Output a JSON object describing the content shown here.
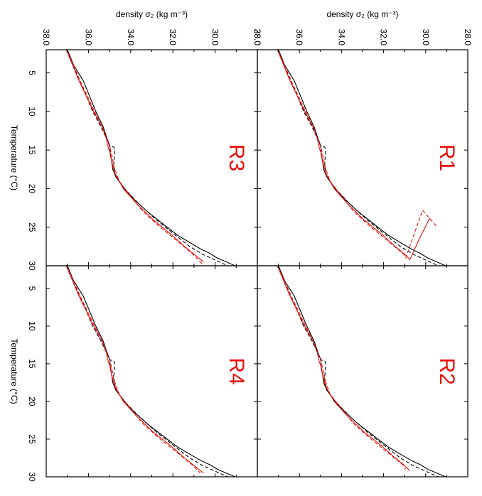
{
  "chart_data": {
    "type": "line",
    "layout": "2x2 panels, figure rotated 90 degrees clockwise (temperature axis runs down the page, density axis runs right-to-left)",
    "xlabel": "Temperature (°C)",
    "ylabel": "density σ₂ (kg m⁻³)",
    "xlim": [
      2,
      30
    ],
    "ylim": [
      28.0,
      38.0
    ],
    "x_ticks": [
      5,
      10,
      15,
      20,
      25,
      30
    ],
    "x_tick_labels": [
      "5",
      "10",
      "15",
      "20",
      "25",
      "30"
    ],
    "y_ticks": [
      28,
      30,
      32,
      34,
      36,
      38
    ],
    "y_tick_labels": [
      "28.0",
      "30.0",
      "32.0",
      "34.0",
      "36.0",
      "38.0"
    ],
    "grid": false,
    "legend": "none",
    "colors": {
      "reference": "#000000",
      "experiment": "#e8100b"
    },
    "panels": [
      {
        "title": "R1",
        "position": "top-right",
        "series": [
          {
            "color": "#000000",
            "style": "solid",
            "x": [
              1.5,
              2,
              4,
              6,
              8,
              10,
              12,
              13.5,
              14,
              14.5,
              15.5,
              16.5,
              17.5,
              18.5,
              20,
              21.5,
              23,
              24.5,
              26,
              27,
              27.8,
              28.4,
              29,
              30
            ],
            "y": [
              37.1,
              37.0,
              36.7,
              36.25,
              35.95,
              35.65,
              35.3,
              35.12,
              35.05,
              34.98,
              34.97,
              34.9,
              34.85,
              34.7,
              34.3,
              33.8,
              33.2,
              32.5,
              31.8,
              31.2,
              30.7,
              30.25,
              29.9,
              29.05
            ]
          },
          {
            "color": "#000000",
            "style": "dashed",
            "x": [
              2,
              4,
              6,
              8,
              10,
              12,
              13.5,
              14.5,
              14.6,
              15,
              16,
              17,
              18.5,
              20,
              22,
              24,
              26,
              27.5,
              28.5,
              29.5,
              30
            ],
            "y": [
              37.0,
              36.75,
              36.4,
              36.1,
              35.8,
              35.4,
              35.15,
              35.0,
              34.8,
              34.75,
              34.78,
              34.8,
              34.7,
              34.3,
              33.6,
              32.8,
              31.9,
              31.2,
              30.6,
              29.8,
              29.4
            ]
          },
          {
            "color": "#e8100b",
            "style": "solid",
            "x": [
              2,
              4,
              6,
              8,
              10,
              12,
              13.5,
              14.2,
              14.8,
              15.5,
              16.5,
              18,
              20,
              22,
              24,
              26,
              27.5,
              28.5,
              29.2,
              26.5,
              23.8
            ],
            "y": [
              37.05,
              36.75,
              36.45,
              36.1,
              35.75,
              35.35,
              35.15,
              35.1,
              35.05,
              34.95,
              34.9,
              34.75,
              34.35,
              33.7,
              32.95,
              32.05,
              31.45,
              31.0,
              30.75,
              30.3,
              29.8
            ]
          },
          {
            "color": "#e8100b",
            "style": "dashed",
            "x": [
              2,
              4,
              6,
              8,
              10,
              12,
              13.5,
              14.5,
              15.5,
              17,
              19,
              21,
              23,
              25,
              27,
              28.5,
              29,
              22.8,
              25
            ],
            "y": [
              37.05,
              36.7,
              36.4,
              36.05,
              35.7,
              35.35,
              35.15,
              35.0,
              34.9,
              34.8,
              34.55,
              34.0,
              33.4,
              32.6,
              31.7,
              31.05,
              30.95,
              30.15,
              29.45
            ]
          }
        ]
      },
      {
        "title": "R2",
        "position": "bottom-right",
        "series": [
          {
            "color": "#000000",
            "style": "solid",
            "x": [
              1.5,
              2,
              4,
              6,
              8,
              10,
              12,
              13.5,
              14,
              14.5,
              15.5,
              16.5,
              17.5,
              18.5,
              20,
              21.5,
              23,
              24.5,
              26,
              27,
              27.8,
              28.4,
              29,
              30
            ],
            "y": [
              37.1,
              37.0,
              36.7,
              36.25,
              35.95,
              35.65,
              35.3,
              35.12,
              35.05,
              34.98,
              34.97,
              34.9,
              34.85,
              34.7,
              34.3,
              33.8,
              33.2,
              32.5,
              31.8,
              31.2,
              30.7,
              30.25,
              29.9,
              29.05
            ]
          },
          {
            "color": "#000000",
            "style": "dashed",
            "x": [
              2,
              4,
              6,
              8,
              10,
              12,
              13.5,
              14.5,
              14.6,
              15,
              16,
              17,
              18.5,
              20,
              22,
              24,
              26,
              27.5,
              28.5,
              29.5,
              30
            ],
            "y": [
              37.0,
              36.75,
              36.4,
              36.1,
              35.8,
              35.4,
              35.15,
              35.0,
              34.8,
              34.75,
              34.78,
              34.8,
              34.7,
              34.3,
              33.6,
              32.8,
              31.9,
              31.2,
              30.6,
              29.8,
              29.4
            ]
          },
          {
            "color": "#e8100b",
            "style": "solid",
            "x": [
              2,
              4,
              6,
              8,
              10,
              12,
              13.5,
              14.2,
              14.8,
              15.5,
              16.5,
              18,
              20,
              22,
              24,
              26,
              27.5,
              28.5,
              29.2
            ],
            "y": [
              37.05,
              36.75,
              36.45,
              36.1,
              35.75,
              35.35,
              35.15,
              35.1,
              35.05,
              34.95,
              34.9,
              34.75,
              34.35,
              33.7,
              32.95,
              32.05,
              31.45,
              31.0,
              30.75
            ]
          },
          {
            "color": "#e8100b",
            "style": "dashed",
            "x": [
              2,
              4,
              6,
              8,
              10,
              12,
              13.5,
              14.5,
              15.5,
              17,
              19,
              21,
              23,
              25,
              27,
              28.5,
              29
            ],
            "y": [
              37.05,
              36.7,
              36.4,
              36.05,
              35.7,
              35.35,
              35.15,
              35.0,
              34.9,
              34.8,
              34.55,
              34.0,
              33.4,
              32.6,
              31.7,
              31.05,
              30.95
            ]
          }
        ]
      },
      {
        "title": "R3",
        "position": "top-left",
        "series": [
          {
            "color": "#000000",
            "style": "solid",
            "x": [
              1.5,
              2,
              4,
              6,
              8,
              10,
              12,
              13.5,
              14,
              14.5,
              15.5,
              16.5,
              17.5,
              18.5,
              20,
              21.5,
              23,
              24.5,
              26,
              27,
              27.8,
              28.4,
              29,
              30
            ],
            "y": [
              37.1,
              37.0,
              36.7,
              36.25,
              35.95,
              35.65,
              35.3,
              35.12,
              35.05,
              34.98,
              34.97,
              34.9,
              34.85,
              34.7,
              34.3,
              33.8,
              33.2,
              32.5,
              31.8,
              31.2,
              30.7,
              30.25,
              29.9,
              29.05
            ]
          },
          {
            "color": "#000000",
            "style": "dashed",
            "x": [
              2,
              4,
              6,
              8,
              10,
              12,
              13.5,
              14.5,
              14.6,
              15,
              16,
              17,
              18.5,
              20,
              22,
              24,
              26,
              27.5,
              28.5,
              29.5,
              30
            ],
            "y": [
              37.0,
              36.75,
              36.4,
              36.1,
              35.8,
              35.4,
              35.15,
              35.0,
              34.8,
              34.75,
              34.78,
              34.8,
              34.7,
              34.3,
              33.6,
              32.8,
              31.9,
              31.2,
              30.6,
              29.8,
              29.4
            ]
          },
          {
            "color": "#e8100b",
            "style": "solid",
            "x": [
              2,
              4,
              6,
              8,
              10,
              12,
              13.5,
              14.2,
              14.8,
              15.5,
              16.5,
              18,
              20,
              22,
              24,
              26,
              27.5,
              28.5,
              29.5
            ],
            "y": [
              37.05,
              36.75,
              36.45,
              36.1,
              35.75,
              35.35,
              35.15,
              35.1,
              35.05,
              34.95,
              34.9,
              34.75,
              34.35,
              33.7,
              32.95,
              32.05,
              31.45,
              31.0,
              30.55
            ]
          },
          {
            "color": "#e8100b",
            "style": "dashed",
            "x": [
              2,
              4,
              6,
              8,
              10,
              12,
              13.5,
              14.5,
              15.5,
              17,
              19,
              21,
              23,
              25,
              27,
              28.5,
              29.8
            ],
            "y": [
              37.05,
              36.7,
              36.4,
              36.05,
              35.7,
              35.35,
              35.15,
              35.0,
              34.9,
              34.8,
              34.55,
              34.0,
              33.4,
              32.6,
              31.7,
              31.05,
              30.6
            ]
          }
        ]
      },
      {
        "title": "R4",
        "position": "bottom-left",
        "series": [
          {
            "color": "#000000",
            "style": "solid",
            "x": [
              1.5,
              2,
              4,
              6,
              8,
              10,
              12,
              13.5,
              14,
              14.5,
              15.5,
              16.5,
              17.5,
              18.5,
              20,
              21.5,
              23,
              24.5,
              26,
              27,
              27.8,
              28.4,
              29,
              30
            ],
            "y": [
              37.1,
              37.0,
              36.7,
              36.25,
              35.95,
              35.65,
              35.3,
              35.12,
              35.05,
              34.98,
              34.97,
              34.9,
              34.85,
              34.7,
              34.3,
              33.8,
              33.2,
              32.5,
              31.8,
              31.2,
              30.7,
              30.25,
              29.9,
              29.05
            ]
          },
          {
            "color": "#000000",
            "style": "dashed",
            "x": [
              2,
              4,
              6,
              8,
              10,
              12,
              13.5,
              14.5,
              14.6,
              15,
              16,
              17,
              18.5,
              20,
              22,
              24,
              26,
              27.5,
              28.5,
              29.5,
              30
            ],
            "y": [
              37.0,
              36.75,
              36.4,
              36.1,
              35.8,
              35.4,
              35.15,
              35.0,
              34.8,
              34.75,
              34.78,
              34.8,
              34.7,
              34.3,
              33.6,
              32.8,
              31.9,
              31.2,
              30.6,
              29.8,
              29.4
            ]
          },
          {
            "color": "#e8100b",
            "style": "solid",
            "x": [
              2,
              4,
              6,
              8,
              10,
              12,
              13.5,
              14.2,
              14.8,
              15.5,
              16.5,
              18,
              20,
              22,
              24,
              26,
              27.5,
              28.5,
              29.5
            ],
            "y": [
              37.05,
              36.75,
              36.45,
              36.1,
              35.75,
              35.35,
              35.15,
              35.1,
              35.05,
              34.95,
              34.9,
              34.75,
              34.35,
              33.7,
              32.95,
              32.05,
              31.45,
              31.0,
              30.55
            ]
          },
          {
            "color": "#e8100b",
            "style": "dashed",
            "x": [
              2,
              4,
              6,
              8,
              10,
              12,
              13.5,
              14.5,
              15.5,
              17,
              19,
              21,
              23,
              25,
              27,
              28.5,
              29.5
            ],
            "y": [
              37.05,
              36.7,
              36.4,
              36.05,
              35.7,
              35.35,
              35.15,
              35.0,
              34.9,
              34.8,
              34.55,
              34.0,
              33.4,
              32.6,
              31.7,
              31.05,
              30.7
            ]
          }
        ]
      }
    ]
  }
}
